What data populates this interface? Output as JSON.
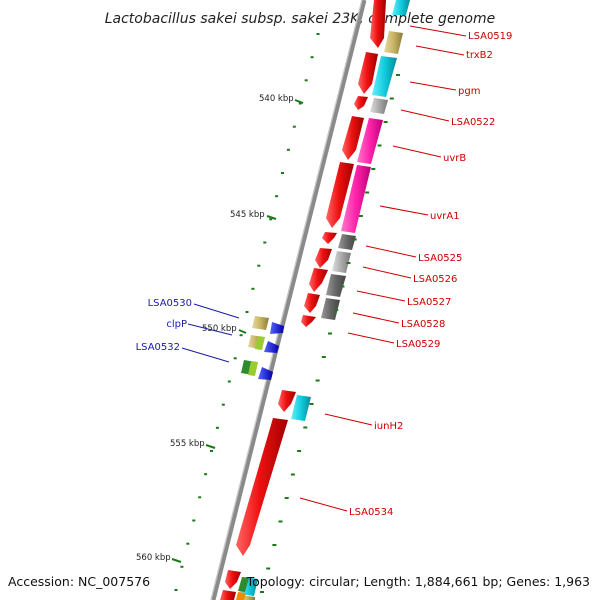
{
  "title": "Lactobacillus sakei subsp. sakei 23K, complete genome",
  "accession": "Accession: NC_007576",
  "topology": "Topology: circular; Length: 1,884,661 bp; Genes: 1,963",
  "kbp_labels": [
    "540 kbp",
    "545 kbp",
    "550 kbp",
    "555 kbp",
    "560 kbp"
  ],
  "right_genes": [
    "LSA0519",
    "trxB2",
    "pgm",
    "LSA0522",
    "uvrB",
    "uvrA1",
    "LSA0525",
    "LSA0526",
    "LSA0527",
    "LSA0528",
    "LSA0529",
    "iunH2",
    "LSA0534"
  ],
  "left_genes": [
    "LSA0530",
    "clpP",
    "LSA0532"
  ],
  "colors": {
    "red": "#ee1111",
    "cyan": "#11ccdd",
    "olive": "#c8b464",
    "gray": "#999999",
    "magenta": "#ff22aa",
    "blue": "#1111dd",
    "label_red": "#cc0000",
    "label_blue": "#1a1aa8",
    "tick": "#1a7a1a"
  }
}
